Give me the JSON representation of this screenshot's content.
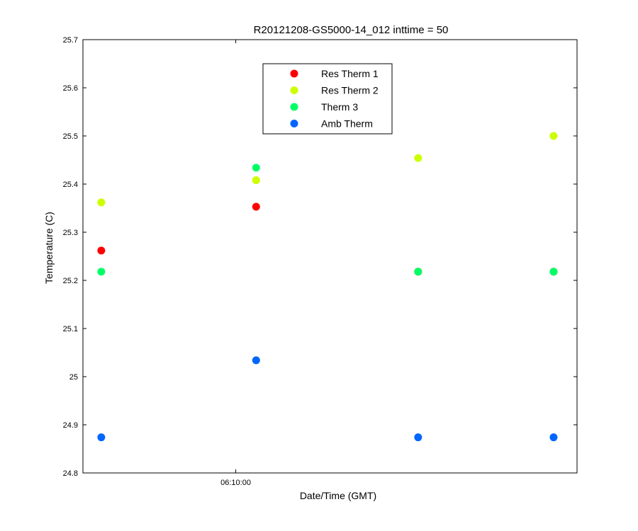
{
  "chart_data": {
    "type": "scatter",
    "title": "R20121208-GS5000-14_012 inttime = 50",
    "xlabel": "Date/Time (GMT)",
    "ylabel": "Temperature (C)",
    "ylim": [
      24.8,
      25.7
    ],
    "yticks": [
      24.8,
      24.9,
      25,
      25.1,
      25.2,
      25.3,
      25.4,
      25.5,
      25.6,
      25.7
    ],
    "ytick_labels": [
      "24.8",
      "24.9",
      "25",
      "25.1",
      "25.2",
      "25.3",
      "25.4",
      "25.5",
      "25.6",
      "25.7"
    ],
    "xlim": [
      "06:07:30",
      "06:15:35"
    ],
    "xticks": [
      "06:10:00"
    ],
    "xtick_labels": [
      "06:10:00"
    ],
    "grid": false,
    "legend_position": "top-center",
    "x": [
      "06:07:48",
      "06:10:20",
      "06:12:59",
      "06:15:12"
    ],
    "series": [
      {
        "name": "Res Therm 1",
        "color": "#ff0000",
        "values": [
          25.262,
          25.353,
          25.218,
          25.218
        ]
      },
      {
        "name": "Res Therm 2",
        "color": "#ccff00",
        "values": [
          25.362,
          25.408,
          25.454,
          25.5
        ]
      },
      {
        "name": "Therm 3",
        "color": "#00ff66",
        "values": [
          25.218,
          25.434,
          25.218,
          25.218
        ]
      },
      {
        "name": "Amb Therm",
        "color": "#0066ff",
        "values": [
          24.874,
          25.034,
          24.874,
          24.874
        ]
      }
    ]
  }
}
